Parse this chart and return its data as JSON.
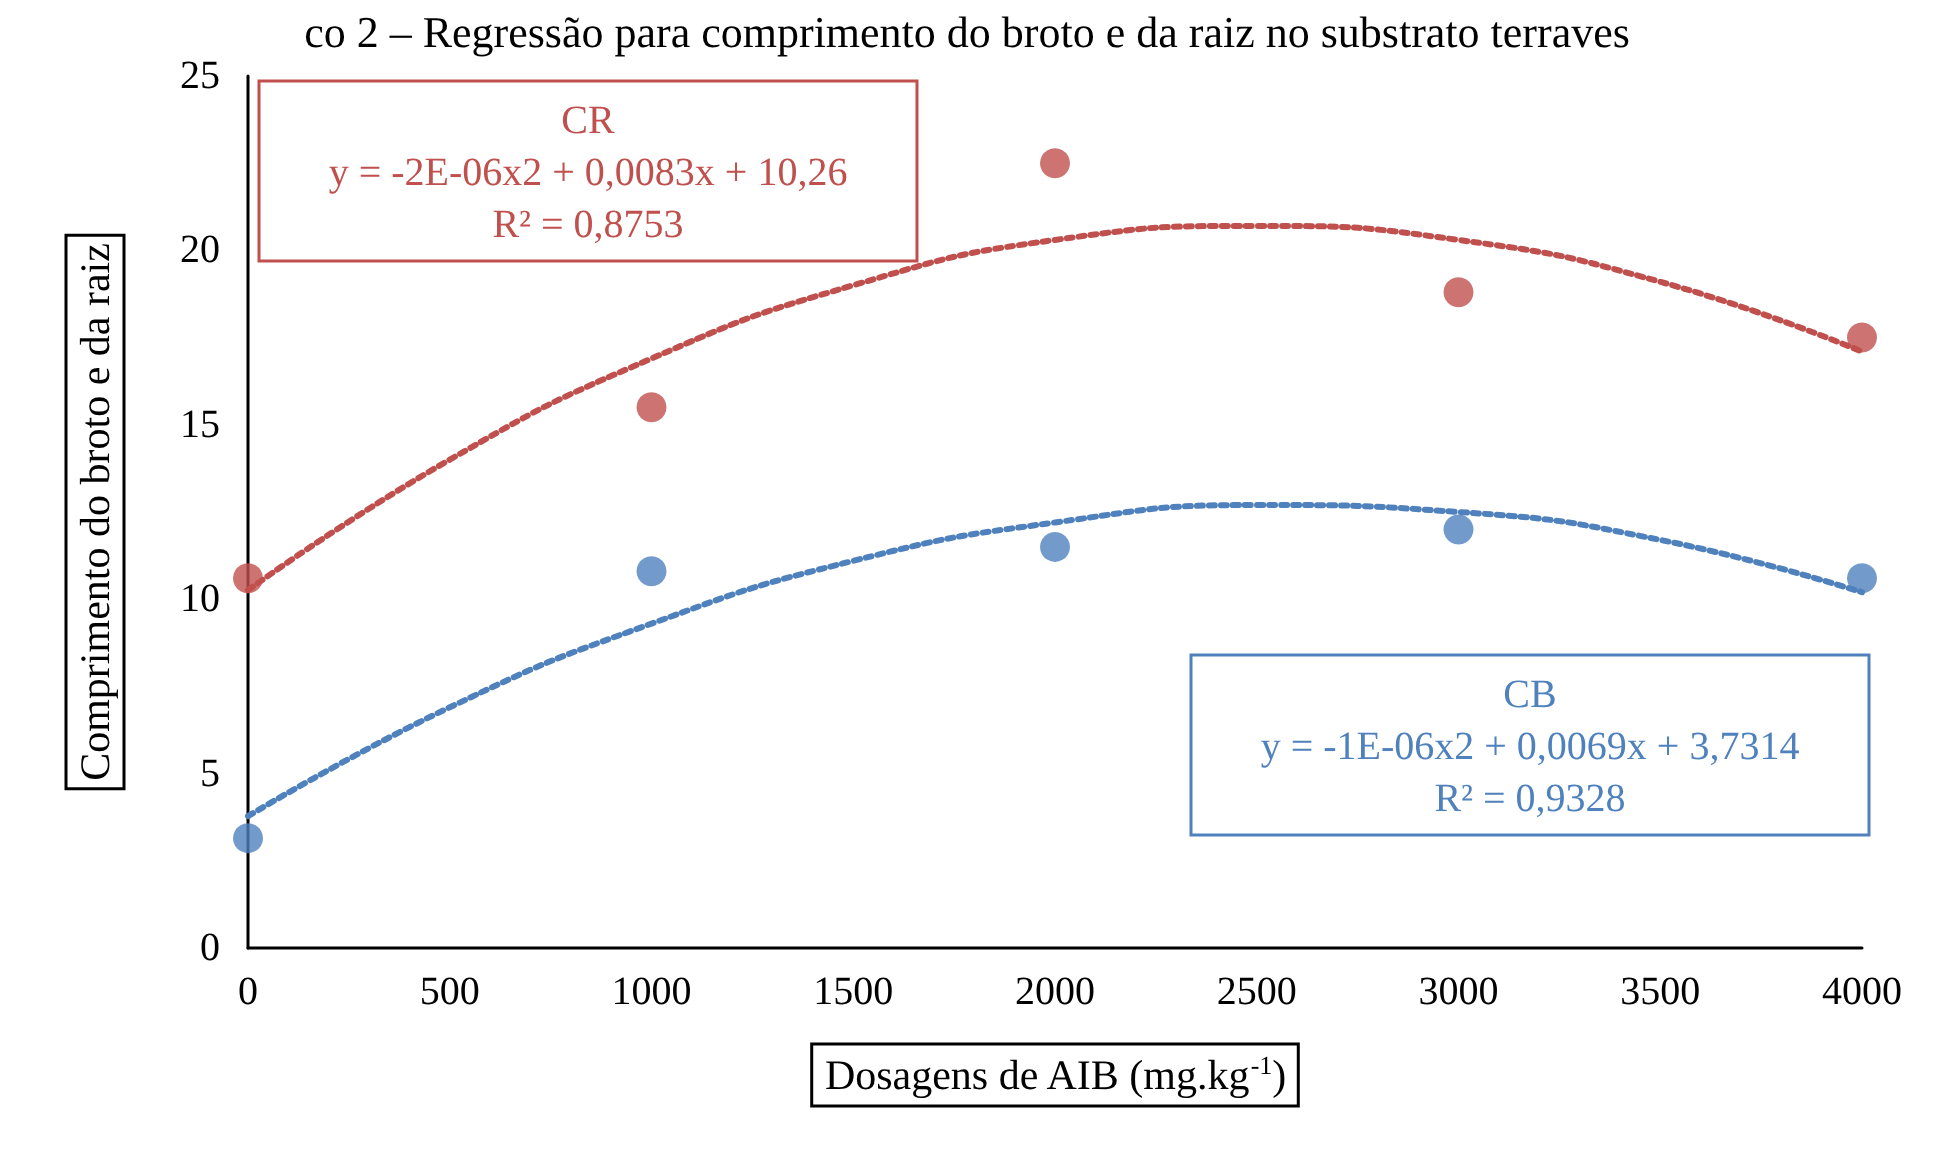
{
  "chart_data": {
    "type": "scatter",
    "title": "co 2 – Regressão para comprimento do broto e da raiz no substrato terraves",
    "xlabel": "Dosagens de AIB (mg.kg$^{-1}$)",
    "ylabel": "Comprimento do broto e da raiz",
    "x": [
      0,
      1000,
      2000,
      3000,
      4000
    ],
    "series": [
      {
        "name": "CR",
        "color": "#c0504d",
        "values": [
          10.6,
          15.5,
          22.5,
          18.8,
          17.5
        ]
      },
      {
        "name": "CB",
        "color": "#4f81bd",
        "values": [
          3.15,
          10.8,
          11.5,
          12.0,
          10.6
        ]
      },
      {
        "type": "line",
        "color": "#c0504d",
        "line_style": "dotted",
        "marker": "none",
        "x": [
          0,
          500,
          1000,
          1500,
          2000,
          2500,
          3000,
          3500,
          4000
        ],
        "values": [
          10.26,
          14.0,
          16.9,
          19.0,
          20.3,
          20.7,
          20.3,
          19.1,
          17.1
        ]
      },
      {
        "type": "line",
        "color": "#4f81bd",
        "line_style": "dotted",
        "marker": "none",
        "x": [
          0,
          500,
          1000,
          1500,
          2000,
          2500,
          3000,
          3500,
          4000
        ],
        "values": [
          3.78,
          6.9,
          9.3,
          11.1,
          12.2,
          12.7,
          12.5,
          11.7,
          10.2
        ]
      }
    ],
    "annotations": [
      "y = -2E-06x2 + 0,0083x + 10,26",
      "R² = 0,8753",
      "y = -1E-06x2 + 0,0069x + 3,7314",
      "R² = 0,9328"
    ],
    "xlim": [
      0,
      4000
    ],
    "xticks": [
      0,
      500,
      1000,
      1500,
      2000,
      2500,
      3000,
      3500,
      4000
    ],
    "ylim": [
      0,
      25
    ],
    "yticks": [
      0,
      5,
      10,
      15,
      20,
      25
    ],
    "grid": false,
    "legend": false,
    "marker": "circle"
  }
}
